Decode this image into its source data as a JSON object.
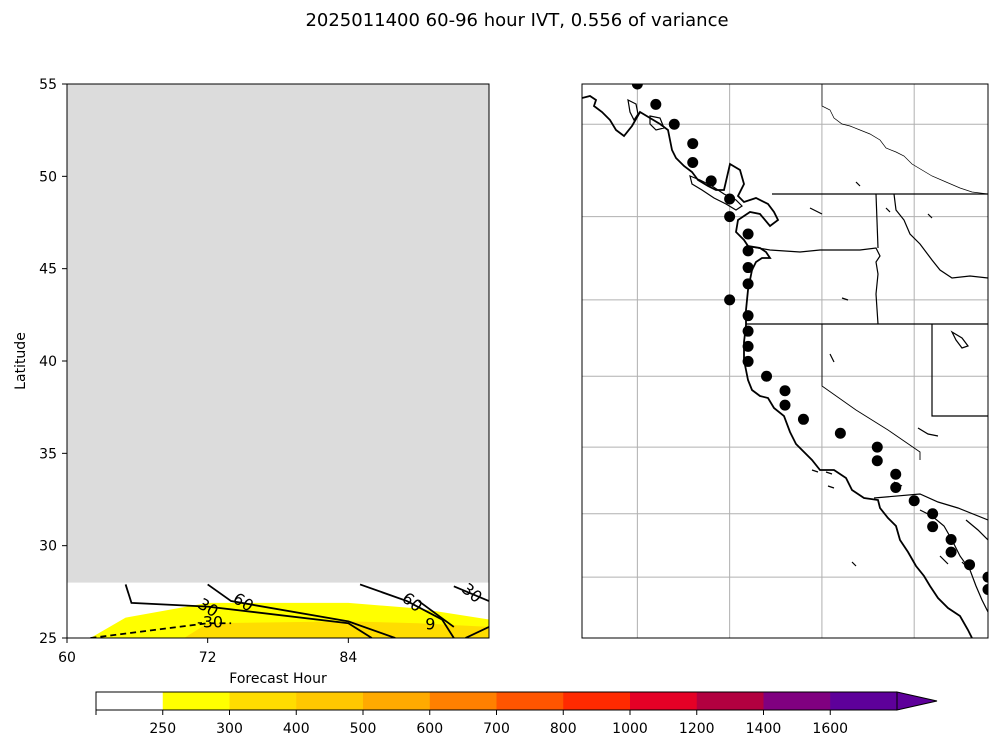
{
  "title": "2025011400 60-96 hour IVT, 0.556 of variance",
  "colors": {
    "missing_fill": "#dcdcdc",
    "contour_line": "#000000",
    "land_line": "#000000",
    "grid_line": "#b0b0b0"
  },
  "chart_data": [
    {
      "type": "heatmap",
      "title": "",
      "xlabel": "Forecast Hour",
      "ylabel": "Latitude",
      "xlim": [
        60,
        96
      ],
      "ylim": [
        25,
        55
      ],
      "x_ticks": [
        60,
        72,
        84
      ],
      "y_ticks": [
        25,
        30,
        35,
        40,
        45,
        50,
        55
      ],
      "missing_region": {
        "x_range": [
          60,
          96
        ],
        "lat_range": [
          28,
          55
        ]
      },
      "filled_bands": [
        {
          "level": 250,
          "color": "#ffff00",
          "polygon": [
            [
              62,
              25
            ],
            [
              65,
              26.1
            ],
            [
              72,
              26.9
            ],
            [
              84,
              26.9
            ],
            [
              90,
              26.6
            ],
            [
              96,
              26.0
            ],
            [
              96,
              25
            ]
          ]
        },
        {
          "level": 300,
          "color": "#ffdd00",
          "polygon": [
            [
              70,
              25
            ],
            [
              72,
              25.8
            ],
            [
              84,
              25.9
            ],
            [
              90,
              25.8
            ],
            [
              96,
              25.6
            ],
            [
              96,
              25
            ]
          ]
        }
      ],
      "contours": [
        {
          "value": 60,
          "label": "60",
          "style": "solid",
          "points": [
            [
              65,
              27.9
            ],
            [
              65.5,
              26.9
            ],
            [
              72,
              26.7
            ],
            [
              84,
              25.8
            ],
            [
              86,
              25.0
            ]
          ]
        },
        {
          "value": 30,
          "label": "30",
          "style": "solid",
          "points": [
            [
              72,
              27.9
            ],
            [
              74,
              27.0
            ],
            [
              84,
              25.9
            ],
            [
              88,
              25.0
            ]
          ]
        },
        {
          "value": 60,
          "label": "60",
          "style": "solid",
          "points": [
            [
              85,
              27.9
            ],
            [
              89,
              27.0
            ],
            [
              92,
              26.0
            ],
            [
              93,
              25.0
            ]
          ]
        },
        {
          "value": 60,
          "label": "60",
          "style": "solid",
          "points": [
            [
              90,
              27.0
            ],
            [
              93,
              25.6
            ]
          ]
        },
        {
          "value": 30,
          "label": "30",
          "style": "solid",
          "points": [
            [
              93,
              27.8
            ],
            [
              96,
              27.0
            ]
          ]
        },
        {
          "value": 30,
          "label": "30",
          "style": "solid",
          "points": [
            [
              94,
              25.0
            ],
            [
              96,
              25.6
            ]
          ]
        },
        {
          "value": -30,
          "label": "-30",
          "style": "dashed",
          "points": [
            [
              62,
              25
            ],
            [
              72,
              25.8
            ],
            [
              74,
              25.8
            ]
          ]
        }
      ],
      "contour_labels": [
        {
          "text": "60",
          "x": 75,
          "y": 26.9,
          "angle": 32
        },
        {
          "text": "30",
          "x": 72,
          "y": 26.6,
          "angle": 32
        },
        {
          "text": "-30",
          "x": 72.2,
          "y": 25.8,
          "angle": 0
        },
        {
          "text": "60",
          "x": 89.4,
          "y": 26.9,
          "angle": 38
        },
        {
          "text": "30",
          "x": 94.5,
          "y": 27.4,
          "angle": 40
        },
        {
          "text": "9",
          "x": 91,
          "y": 25.7,
          "angle": 0
        }
      ]
    },
    {
      "type": "scatter",
      "title": "",
      "xlabel": "",
      "ylabel": "",
      "projection": "Mercator",
      "lon_range": [
        -136,
        -114
      ],
      "lat_range": [
        20,
        57
      ],
      "grid": true,
      "grid_lons": [
        -133,
        -128,
        -123,
        -118
      ],
      "grid_lats": [
        25,
        30,
        35,
        40,
        45,
        50,
        55
      ],
      "points": [
        {
          "lon": -133,
          "lat": 57
        },
        {
          "lon": -132,
          "lat": 56
        },
        {
          "lon": -131,
          "lat": 55
        },
        {
          "lon": -130,
          "lat": 54
        },
        {
          "lon": -130,
          "lat": 53
        },
        {
          "lon": -129,
          "lat": 52
        },
        {
          "lon": -128,
          "lat": 51
        },
        {
          "lon": -128,
          "lat": 50
        },
        {
          "lon": -127,
          "lat": 49
        },
        {
          "lon": -127,
          "lat": 48
        },
        {
          "lon": -127,
          "lat": 47
        },
        {
          "lon": -127,
          "lat": 46
        },
        {
          "lon": -128,
          "lat": 45
        },
        {
          "lon": -127,
          "lat": 44
        },
        {
          "lon": -127,
          "lat": 43
        },
        {
          "lon": -127,
          "lat": 42
        },
        {
          "lon": -127,
          "lat": 41
        },
        {
          "lon": -126,
          "lat": 40
        },
        {
          "lon": -125,
          "lat": 39
        },
        {
          "lon": -125,
          "lat": 38
        },
        {
          "lon": -124,
          "lat": 37
        },
        {
          "lon": -122,
          "lat": 36
        },
        {
          "lon": -120,
          "lat": 35
        },
        {
          "lon": -120,
          "lat": 34
        },
        {
          "lon": -119,
          "lat": 33
        },
        {
          "lon": -119,
          "lat": 32
        },
        {
          "lon": -118,
          "lat": 31
        },
        {
          "lon": -117,
          "lat": 30
        },
        {
          "lon": -117,
          "lat": 29
        },
        {
          "lon": -116,
          "lat": 28
        },
        {
          "lon": -116,
          "lat": 27
        },
        {
          "lon": -115,
          "lat": 26
        },
        {
          "lon": -114,
          "lat": 25
        },
        {
          "lon": -114,
          "lat": 24
        },
        {
          "lon": -113,
          "lat": 23
        },
        {
          "lon": -112,
          "lat": 22
        }
      ]
    }
  ],
  "colorbar": {
    "levels": [
      250,
      300,
      400,
      500,
      600,
      700,
      800,
      1000,
      1200,
      1400,
      1600
    ],
    "tick_labels": [
      "250",
      "300",
      "400",
      "500",
      "600",
      "700",
      "800",
      "1000",
      "1200",
      "1400",
      "1600"
    ],
    "colors": [
      "#ffffff",
      "#ffff00",
      "#ffdd00",
      "#ffc800",
      "#ffaa00",
      "#ff8000",
      "#ff5500",
      "#ff2a00",
      "#e50026",
      "#b20040",
      "#800080",
      "#5e009a"
    ],
    "extend": "max"
  }
}
